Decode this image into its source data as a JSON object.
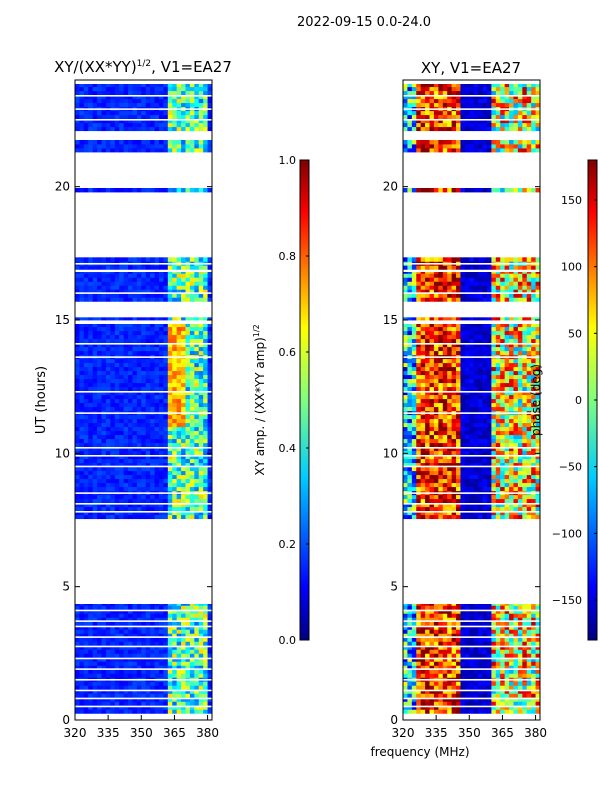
{
  "figure_title": "2022-09-15 0.0-24.0",
  "shared_xlabel": "frequency (MHz)",
  "colors": {
    "background": "#ffffff",
    "frame": "#000000",
    "gap": "#ffffff",
    "colormap": [
      "#00007f",
      "#0000ff",
      "#007fff",
      "#00ffff",
      "#7fff7f",
      "#ffff00",
      "#ff7f00",
      "#ff0000",
      "#7f0000"
    ]
  },
  "chart_data": [
    {
      "type": "heatmap",
      "panel": "left",
      "title_main": "XY/(XX*YY)",
      "title_sup": "1/2",
      "title_rest": ", V1=EA27",
      "xlabel": "",
      "ylabel": "UT (hours)",
      "xlim": [
        320,
        382
      ],
      "ylim": [
        0,
        24
      ],
      "xticks": [
        320,
        335,
        350,
        365,
        380
      ],
      "yticks": [
        0,
        5,
        10,
        15,
        20
      ],
      "colorbar": {
        "label_main": "XY amp. / (XX*YY amp)",
        "label_sup": "1/2",
        "range": [
          0.0,
          1.0
        ],
        "ticks": [
          "0.0",
          "0.2",
          "0.4",
          "0.6",
          "0.8",
          "1.0"
        ],
        "tick_values": [
          0.0,
          0.2,
          0.4,
          0.6,
          0.8,
          1.0
        ]
      },
      "data_blocks_hours": [
        [
          0.25,
          4.35
        ],
        [
          7.55,
          8.75
        ],
        [
          8.75,
          14.85
        ],
        [
          15.0,
          15.1
        ],
        [
          15.7,
          16.8
        ],
        [
          16.9,
          17.35
        ],
        [
          19.8,
          19.95
        ],
        [
          21.3,
          21.75
        ],
        [
          22.1,
          23.85
        ]
      ],
      "gap_rows_hours": [
        0.5,
        0.8,
        1.1,
        1.5,
        1.9,
        2.3,
        2.75,
        3.1,
        3.5,
        3.7,
        4.1,
        7.8,
        8.1,
        8.5,
        9.5,
        9.9,
        10.2,
        11.5,
        12.3,
        13.6,
        14.1,
        16.0,
        17.1,
        22.5,
        22.9,
        23.4
      ],
      "value_profile": {
        "baseline": 0.12,
        "bright_band_mhz": [
          361,
          380
        ],
        "bright_band_value": 0.45,
        "bright_peak_mhz": [
          362,
          370
        ],
        "bright_peak_value": 0.6
      }
    },
    {
      "type": "heatmap",
      "panel": "right",
      "title_main": "XY, V1=EA27",
      "xlabel": "frequency (MHz)",
      "ylabel": "",
      "xlim": [
        320,
        382
      ],
      "ylim": [
        0,
        24
      ],
      "xticks": [
        320,
        335,
        350,
        365,
        380
      ],
      "yticks": [
        0,
        5,
        10,
        15,
        20
      ],
      "colorbar": {
        "label_main": "phase (deg)",
        "range": [
          -180,
          180
        ],
        "ticks": [
          "−150",
          "−100",
          "−50",
          "0",
          "50",
          "100",
          "150"
        ],
        "tick_values": [
          -150,
          -100,
          -50,
          0,
          50,
          100,
          150
        ]
      },
      "data_blocks_hours": [
        [
          0.25,
          4.35
        ],
        [
          7.55,
          8.75
        ],
        [
          8.75,
          14.85
        ],
        [
          15.0,
          15.1
        ],
        [
          15.7,
          16.8
        ],
        [
          16.9,
          17.35
        ],
        [
          19.8,
          19.95
        ],
        [
          21.3,
          21.75
        ],
        [
          22.1,
          23.85
        ]
      ],
      "gap_rows_hours": [
        0.5,
        0.8,
        1.1,
        1.5,
        1.9,
        2.3,
        2.75,
        3.1,
        3.5,
        3.7,
        4.1,
        7.8,
        8.1,
        8.5,
        9.5,
        9.9,
        10.2,
        11.5,
        12.3,
        13.6,
        14.1,
        16.0,
        17.1,
        22.5,
        22.9,
        23.4
      ],
      "value_profile": {
        "hot_band_mhz": [
          325,
          345
        ],
        "hot_band_deg": 120,
        "cold_band_mhz": [
          345,
          360
        ],
        "cold_band_deg": -170,
        "mixed_band_mhz": [
          360,
          380
        ],
        "mixed_band_deg": 40
      }
    }
  ]
}
